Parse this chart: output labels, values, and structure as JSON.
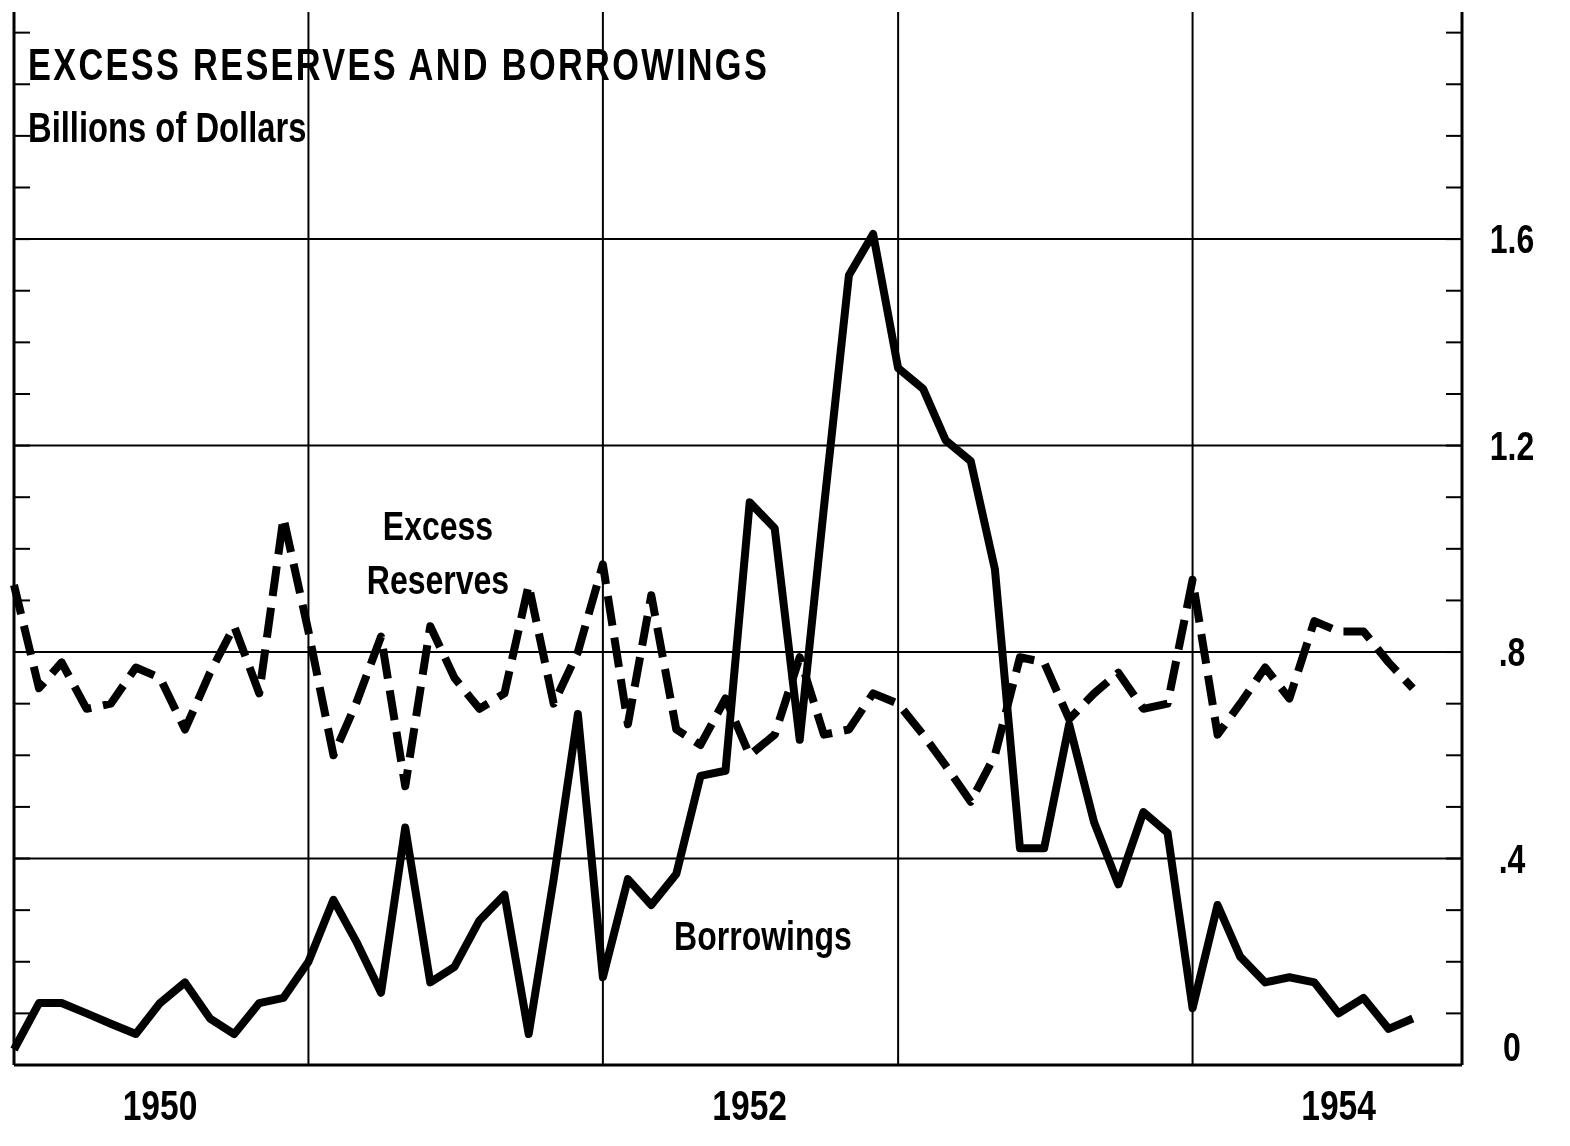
{
  "chart_data": {
    "type": "line",
    "title": "EXCESS RESERVES AND BORROWINGS",
    "subtitle": "Billions of Dollars",
    "x": [
      "1950-01",
      "1950-02",
      "1950-03",
      "1950-04",
      "1950-05",
      "1950-06",
      "1950-07",
      "1950-08",
      "1950-09",
      "1950-10",
      "1950-11",
      "1950-12",
      "1951-01",
      "1951-02",
      "1951-03",
      "1951-04",
      "1951-05",
      "1951-06",
      "1951-07",
      "1951-08",
      "1951-09",
      "1951-10",
      "1951-11",
      "1951-12",
      "1952-01",
      "1952-02",
      "1952-03",
      "1952-04",
      "1952-05",
      "1952-06",
      "1952-07",
      "1952-08",
      "1952-09",
      "1952-10",
      "1952-11",
      "1952-12",
      "1953-01",
      "1953-02",
      "1953-03",
      "1953-04",
      "1953-05",
      "1953-06",
      "1953-07",
      "1953-08",
      "1953-09",
      "1953-10",
      "1953-11",
      "1953-12",
      "1954-01",
      "1954-02",
      "1954-03",
      "1954-04",
      "1954-05",
      "1954-06",
      "1954-07",
      "1954-08",
      "1954-09",
      "1954-10"
    ],
    "series": [
      {
        "name": "Excess Reserves",
        "color": "#000000",
        "line_style": "dashed",
        "values": [
          0.93,
          0.73,
          0.78,
          0.69,
          0.7,
          0.77,
          0.75,
          0.65,
          0.76,
          0.85,
          0.72,
          1.06,
          0.84,
          0.6,
          0.7,
          0.83,
          0.54,
          0.85,
          0.75,
          0.69,
          0.72,
          0.93,
          0.7,
          0.8,
          0.97,
          0.66,
          0.91,
          0.65,
          0.62,
          0.71,
          0.6,
          0.64,
          0.79,
          0.64,
          0.65,
          0.72,
          0.7,
          0.64,
          0.58,
          0.51,
          0.6,
          0.79,
          0.78,
          0.67,
          0.72,
          0.76,
          0.69,
          0.7,
          0.94,
          0.64,
          0.7,
          0.77,
          0.71,
          0.86,
          0.84,
          0.84,
          0.78,
          0.73
        ]
      },
      {
        "name": "Borrowings",
        "color": "#000000",
        "line_style": "solid",
        "values": [
          0.03,
          0.12,
          0.12,
          0.1,
          0.08,
          0.06,
          0.12,
          0.16,
          0.09,
          0.06,
          0.12,
          0.13,
          0.2,
          0.32,
          0.24,
          0.14,
          0.46,
          0.16,
          0.19,
          0.28,
          0.33,
          0.06,
          0.36,
          0.68,
          0.17,
          0.36,
          0.31,
          0.37,
          0.56,
          0.57,
          1.09,
          1.04,
          0.63,
          1.08,
          1.53,
          1.61,
          1.35,
          1.31,
          1.21,
          1.17,
          0.96,
          0.42,
          0.42,
          0.66,
          0.47,
          0.35,
          0.49,
          0.45,
          0.11,
          0.31,
          0.21,
          0.16,
          0.17,
          0.16,
          0.1,
          0.13,
          0.07,
          0.09
        ]
      }
    ],
    "xlim": [
      "1950-01",
      "1954-12"
    ],
    "xticks": [
      {
        "value": "1950-07",
        "label": "1950"
      },
      {
        "value": "1951-01",
        "label": null
      },
      {
        "value": "1952-01",
        "label": null
      },
      {
        "value": "1952-07",
        "label": "1952"
      },
      {
        "value": "1953-01",
        "label": null
      },
      {
        "value": "1954-01",
        "label": null
      },
      {
        "value": "1954-07",
        "label": "1954"
      }
    ],
    "ylim": [
      0,
      2.04
    ],
    "yticks": [
      0,
      {
        "value": 0.1,
        "label": null
      },
      {
        "value": 0.2,
        "label": null
      },
      {
        "value": 0.3,
        "label": null
      },
      {
        "value": 0.4,
        "label": ".4"
      },
      {
        "value": 0.5,
        "label": null
      },
      {
        "value": 0.6,
        "label": null
      },
      {
        "value": 0.7,
        "label": null
      },
      {
        "value": 0.8,
        "label": ".8"
      },
      {
        "value": 0.9,
        "label": null
      },
      {
        "value": 1.0,
        "label": null
      },
      {
        "value": 1.1,
        "label": null
      },
      1.2,
      {
        "value": 1.3,
        "label": null
      },
      {
        "value": 1.4,
        "label": null
      },
      {
        "value": 1.5,
        "label": null
      },
      1.6,
      {
        "value": 1.7,
        "label": null
      },
      {
        "value": 1.8,
        "label": null
      },
      {
        "value": 1.9,
        "label": null
      },
      {
        "value": 2.0,
        "label": null
      }
    ],
    "grid": true,
    "legend": false,
    "marker": "none"
  }
}
